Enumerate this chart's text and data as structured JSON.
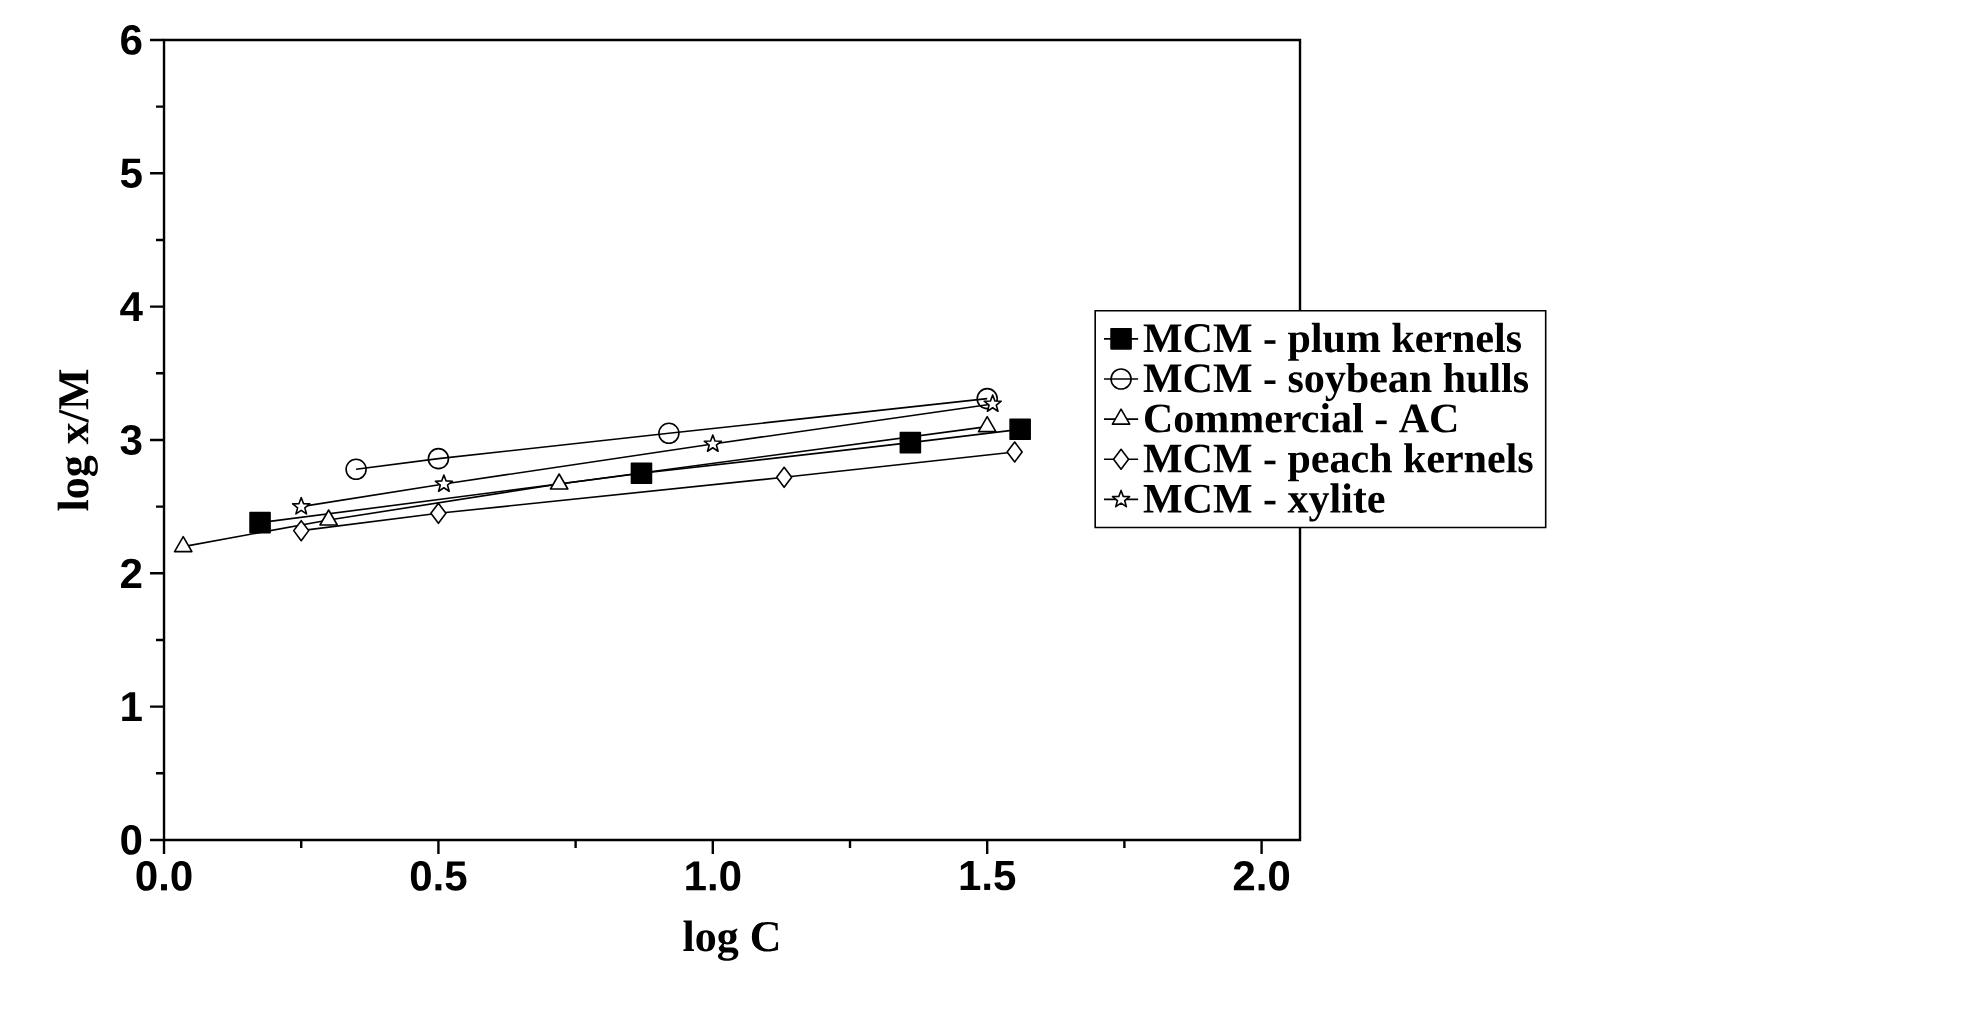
{
  "chart_data": {
    "type": "line",
    "xlabel": "log C",
    "ylabel": "log x/M",
    "xlim": [
      0,
      2.07
    ],
    "ylim": [
      0,
      6
    ],
    "xticks": [
      {
        "value": 0,
        "label": "0.0"
      },
      0.5,
      {
        "value": 1,
        "label": "1.0"
      },
      1.5,
      {
        "value": 2,
        "label": "2.0"
      }
    ],
    "yticks": [
      0,
      1,
      2,
      3,
      4,
      5,
      6
    ],
    "legend": "right",
    "grid": false,
    "line_style": "solid",
    "series": [
      {
        "name": "MCM - plum kernels",
        "color": "#000000",
        "marker": "square",
        "x": [
          0.175,
          0.87,
          1.36,
          1.56
        ],
        "values": [
          2.38,
          2.75,
          2.98,
          3.08
        ]
      },
      {
        "name": "MCM - soybean hulls",
        "color": "#000000",
        "marker": "circle",
        "x": [
          0.35,
          0.5,
          0.92,
          1.5
        ],
        "values": [
          2.78,
          2.86,
          3.05,
          3.31
        ]
      },
      {
        "name": "Commercial - AC",
        "color": "#000000",
        "marker": "triangle",
        "x": [
          0.035,
          0.3,
          0.72,
          1.5
        ],
        "values": [
          2.2,
          2.4,
          2.67,
          3.1
        ]
      },
      {
        "name": "MCM - peach kernels",
        "color": "#000000",
        "marker": "diamond",
        "x": [
          0.25,
          0.5,
          1.13,
          1.55
        ],
        "values": [
          2.32,
          2.45,
          2.72,
          2.91
        ]
      },
      {
        "name": "MCM - xylite",
        "color": "#000000",
        "marker": "star",
        "x": [
          0.25,
          0.51,
          1.0,
          1.51
        ],
        "values": [
          2.5,
          2.67,
          2.97,
          3.27
        ]
      }
    ]
  }
}
